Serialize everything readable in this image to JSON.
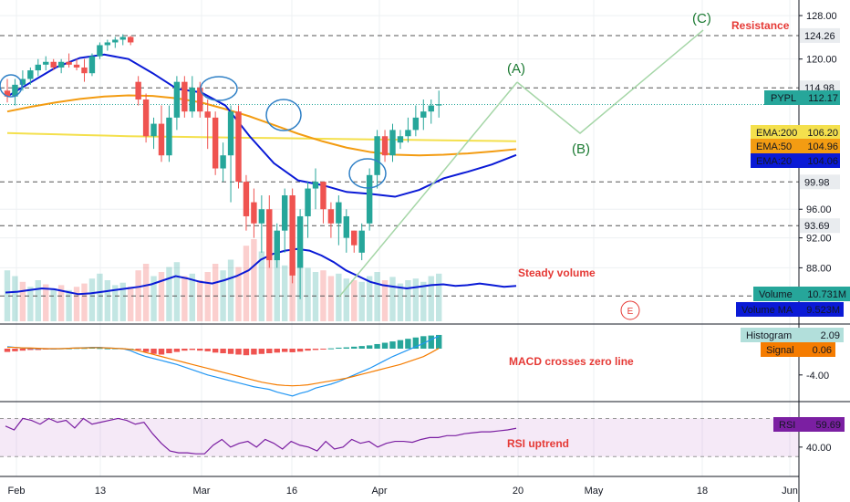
{
  "chart_data": {
    "type": "candlestick",
    "symbol": "PYPL",
    "x_ticks": [
      "Feb",
      "13",
      "Mar",
      "16",
      "Apr",
      "20",
      "May",
      "18",
      "Jun"
    ],
    "price_axis": {
      "ticks": [
        "128.00",
        "120.00",
        "96.00",
        "92.00",
        "88.00"
      ],
      "scale": "log",
      "range": [
        81.5,
        131
      ]
    },
    "price_labels": [
      {
        "name": "PYPL",
        "value": "112.17",
        "color": "#26a69a"
      },
      {
        "name": "EMA:200",
        "value": "106.20",
        "color": "#f4e04d"
      },
      {
        "name": "EMA:50",
        "value": "104.96",
        "color": "#f39c12"
      },
      {
        "name": "EMA:20",
        "value": "104.06",
        "color": "#0a1ad6"
      }
    ],
    "levels": [
      "124.26",
      "114.98",
      "99.98",
      "93.69",
      "84.40"
    ],
    "volume": {
      "label": "Volume",
      "value": "10.731M",
      "ma_label": "Volume MA",
      "ma_value": "9.523M"
    },
    "macd": {
      "hist_label": "Histogram",
      "hist_value": "2.09",
      "signal_label": "Signal",
      "signal_value": "0.06",
      "tick": "-4.00"
    },
    "rsi": {
      "label": "RSI",
      "value": "59.69",
      "tick": "40.00"
    },
    "annotations": {
      "resistance": "Resistance",
      "steady_volume": "Steady volume",
      "macd_cross": "MACD crosses zero line",
      "rsi_uptrend": "RSI uptrend",
      "wave_a": "(A)",
      "wave_b": "(B)",
      "wave_c": "(C)",
      "earnings": "E"
    },
    "candles": [
      [
        114.5,
        116.5,
        112.5,
        113.5
      ],
      [
        113.5,
        116.5,
        112,
        115.5
      ],
      [
        115.5,
        118,
        114.5,
        116.5
      ],
      [
        116.5,
        118.5,
        115.5,
        118
      ],
      [
        118,
        120,
        117,
        119
      ],
      [
        119,
        120.5,
        118,
        119.5
      ],
      [
        119.5,
        120,
        118,
        118.5
      ],
      [
        118.5,
        120,
        117.5,
        119.5
      ],
      [
        119.5,
        121,
        118.5,
        119
      ],
      [
        119,
        120,
        118,
        118.5
      ],
      [
        118.5,
        120,
        116,
        117.5
      ],
      [
        117.5,
        121,
        117,
        120.5
      ],
      [
        120.5,
        123,
        120,
        122.5
      ],
      [
        122.5,
        123.5,
        121.5,
        123
      ],
      [
        123,
        124,
        122,
        123.5
      ],
      [
        123.5,
        124.5,
        122.5,
        124
      ],
      [
        124,
        124.2,
        122.5,
        123
      ],
      [
        116,
        117,
        112,
        113
      ],
      [
        113,
        114,
        106,
        107
      ],
      [
        107,
        110,
        105,
        109
      ],
      [
        109,
        112,
        103,
        104
      ],
      [
        104,
        112,
        103,
        110
      ],
      [
        110,
        117,
        108,
        116
      ],
      [
        116,
        117,
        110,
        111
      ],
      [
        111,
        117,
        110,
        115
      ],
      [
        115,
        116,
        110,
        111
      ],
      [
        111,
        113,
        105,
        110
      ],
      [
        110,
        111,
        101,
        102
      ],
      [
        102,
        106,
        100,
        104
      ],
      [
        104,
        112,
        97,
        111
      ],
      [
        111,
        112,
        99,
        100
      ],
      [
        100,
        101,
        93,
        95
      ],
      [
        97,
        99,
        92,
        94
      ],
      [
        94,
        98,
        90,
        96
      ],
      [
        96,
        98,
        88,
        89
      ],
      [
        89,
        94,
        88,
        93
      ],
      [
        93,
        99,
        90,
        98
      ],
      [
        98,
        99,
        86,
        87
      ],
      [
        88,
        96,
        84,
        95
      ],
      [
        95,
        100,
        92,
        99
      ],
      [
        99,
        102,
        96,
        100
      ],
      [
        100,
        100,
        94,
        96
      ],
      [
        96,
        97,
        92,
        94
      ],
      [
        94,
        98,
        91,
        97
      ],
      [
        92,
        96,
        90,
        95
      ],
      [
        93,
        93,
        90,
        91
      ],
      [
        90,
        94,
        89,
        93
      ],
      [
        94,
        102,
        93,
        101
      ],
      [
        101,
        108,
        99,
        107
      ],
      [
        107,
        108,
        103,
        104
      ],
      [
        104,
        109,
        103,
        108
      ],
      [
        106,
        108,
        105,
        107
      ],
      [
        107,
        110,
        106,
        108
      ],
      [
        108,
        112,
        107,
        110
      ],
      [
        110,
        113,
        108,
        111
      ],
      [
        111,
        113,
        109,
        112
      ],
      [
        112,
        114.5,
        110,
        112.2
      ]
    ],
    "series": [
      {
        "name": "EMA:200",
        "color": "#f4e04d",
        "values": [
          107.5,
          107.4,
          107.3,
          107.2,
          107.1,
          107.0,
          106.95,
          106.9,
          106.85,
          106.8,
          106.75,
          106.7,
          106.65,
          106.6,
          106.55,
          106.5,
          106.45,
          106.4,
          106.35,
          106.3,
          106.25,
          106.2
        ]
      },
      {
        "name": "EMA:50",
        "color": "#f39c12",
        "values": [
          111.0,
          111.8,
          112.5,
          113.1,
          113.5,
          113.7,
          113.6,
          113.2,
          112.5,
          111.4,
          110.2,
          108.8,
          107.4,
          106.2,
          105.2,
          104.5,
          104.1,
          104.0,
          104.1,
          104.3,
          104.6,
          104.96
        ]
      },
      {
        "name": "EMA:20",
        "color": "#0a1ad6",
        "values": [
          113.5,
          116.0,
          118.5,
          120.2,
          120.8,
          120.0,
          117.5,
          114.8,
          114.2,
          112.0,
          107.0,
          102.8,
          100.2,
          99.5,
          98.5,
          98.2,
          97.8,
          98.8,
          100.5,
          101.5,
          102.6,
          104.06
        ]
      }
    ],
    "volume_bars": [
      [
        0.62,
        1
      ],
      [
        0.55,
        1
      ],
      [
        0.48,
        0
      ],
      [
        0.42,
        1
      ],
      [
        0.5,
        1
      ],
      [
        0.45,
        0
      ],
      [
        0.4,
        1
      ],
      [
        0.44,
        0
      ],
      [
        0.38,
        1
      ],
      [
        0.42,
        0
      ],
      [
        0.46,
        0
      ],
      [
        0.52,
        1
      ],
      [
        0.58,
        1
      ],
      [
        0.5,
        1
      ],
      [
        0.44,
        1
      ],
      [
        0.47,
        1
      ],
      [
        0.42,
        0
      ],
      [
        0.62,
        0
      ],
      [
        0.7,
        0
      ],
      [
        0.55,
        1
      ],
      [
        0.6,
        0
      ],
      [
        0.66,
        1
      ],
      [
        0.72,
        1
      ],
      [
        0.55,
        0
      ],
      [
        0.58,
        1
      ],
      [
        0.5,
        0
      ],
      [
        0.6,
        0
      ],
      [
        0.7,
        0
      ],
      [
        0.62,
        1
      ],
      [
        0.75,
        1
      ],
      [
        0.66,
        0
      ],
      [
        0.92,
        0
      ],
      [
        1.0,
        0
      ],
      [
        0.85,
        1
      ],
      [
        0.9,
        0
      ],
      [
        0.75,
        1
      ],
      [
        0.68,
        1
      ],
      [
        0.72,
        0
      ],
      [
        0.8,
        1
      ],
      [
        0.65,
        1
      ],
      [
        0.6,
        1
      ],
      [
        0.62,
        0
      ],
      [
        0.55,
        0
      ],
      [
        0.58,
        1
      ],
      [
        0.52,
        1
      ],
      [
        0.5,
        0
      ],
      [
        0.48,
        1
      ],
      [
        0.55,
        1
      ],
      [
        0.6,
        1
      ],
      [
        0.5,
        0
      ],
      [
        0.54,
        1
      ],
      [
        0.46,
        1
      ],
      [
        0.5,
        1
      ],
      [
        0.52,
        1
      ],
      [
        0.48,
        1
      ],
      [
        0.55,
        1
      ],
      [
        0.58,
        1
      ]
    ],
    "volume_ma": [
      0.35,
      0.36,
      0.38,
      0.4,
      0.39,
      0.36,
      0.33,
      0.34,
      0.36,
      0.38,
      0.4,
      0.42,
      0.45,
      0.5,
      0.55,
      0.52,
      0.48,
      0.46,
      0.5,
      0.55,
      0.62,
      0.75,
      0.82,
      0.86,
      0.88,
      0.86,
      0.8,
      0.72,
      0.62,
      0.55,
      0.48,
      0.44,
      0.42,
      0.4,
      0.42,
      0.44,
      0.45,
      0.43,
      0.44,
      0.46,
      0.44,
      0.42,
      0.43
    ],
    "macd_hist": [
      -0.5,
      -0.4,
      -0.3,
      -0.2,
      -0.2,
      -0.1,
      -0.1,
      0.05,
      0.05,
      0.1,
      0.1,
      0.15,
      0.1,
      0.05,
      0.05,
      0.05,
      0.0,
      -0.2,
      -0.5,
      -0.8,
      -0.9,
      -0.7,
      -0.5,
      -0.3,
      -0.2,
      -0.3,
      -0.4,
      -0.6,
      -0.7,
      -0.8,
      -0.9,
      -1.0,
      -0.9,
      -0.8,
      -0.7,
      -0.6,
      -0.5,
      -0.55,
      -0.45,
      -0.3,
      -0.2,
      -0.1,
      0.05,
      0.15,
      0.2,
      0.3,
      0.4,
      0.5,
      0.7,
      0.9,
      1.1,
      1.3,
      1.5,
      1.7,
      1.9,
      2.0,
      2.09
    ],
    "macd_line": [
      0.3,
      0.2,
      0.1,
      0.05,
      0.0,
      0.0,
      -0.05,
      0.0,
      0.05,
      0.1,
      0.15,
      0.2,
      0.2,
      0.1,
      0.05,
      0.0,
      -0.3,
      -0.8,
      -1.2,
      -1.5,
      -1.8,
      -2.1,
      -2.4,
      -2.8,
      -3.2,
      -3.6,
      -4.0,
      -4.3,
      -4.6,
      -4.9,
      -5.2,
      -5.5,
      -5.8,
      -6.0,
      -6.2,
      -6.6,
      -6.9,
      -7.2,
      -6.8,
      -6.5,
      -6.0,
      -5.7,
      -5.4,
      -5.0,
      -4.5,
      -4.0,
      -3.5,
      -3.0,
      -2.4,
      -1.8,
      -1.2,
      -0.7,
      -0.2,
      0.3,
      0.8,
      1.4,
      1.9
    ],
    "signal_line": [
      0.2,
      0.2,
      0.1,
      0.1,
      0.05,
      0.0,
      0.0,
      0.0,
      0.05,
      0.1,
      0.1,
      0.15,
      0.15,
      0.1,
      0.05,
      0.0,
      -0.1,
      -0.3,
      -0.6,
      -0.9,
      -1.2,
      -1.5,
      -1.8,
      -2.1,
      -2.4,
      -2.7,
      -3.0,
      -3.3,
      -3.6,
      -3.9,
      -4.2,
      -4.5,
      -4.8,
      -5.1,
      -5.3,
      -5.5,
      -5.6,
      -5.65,
      -5.6,
      -5.5,
      -5.3,
      -5.1,
      -4.9,
      -4.7,
      -4.5,
      -4.2,
      -3.9,
      -3.6,
      -3.3,
      -3.0,
      -2.7,
      -2.4,
      -2.0,
      -1.6,
      -1.2,
      -0.6,
      0.06
    ],
    "rsi_values": [
      62,
      58,
      70,
      68,
      64,
      70,
      66,
      68,
      60,
      70,
      64,
      66,
      68,
      70,
      68,
      64,
      66,
      54,
      44,
      36,
      34,
      34,
      33,
      33,
      42,
      48,
      40,
      44,
      46,
      40,
      48,
      44,
      38,
      46,
      42,
      40,
      36,
      46,
      38,
      40,
      48,
      44,
      46,
      40,
      44,
      46,
      46,
      45,
      48,
      50,
      50,
      52,
      52,
      54,
      55,
      56,
      56,
      57,
      58,
      59.69
    ],
    "rsi_range": [
      15,
      80
    ]
  }
}
